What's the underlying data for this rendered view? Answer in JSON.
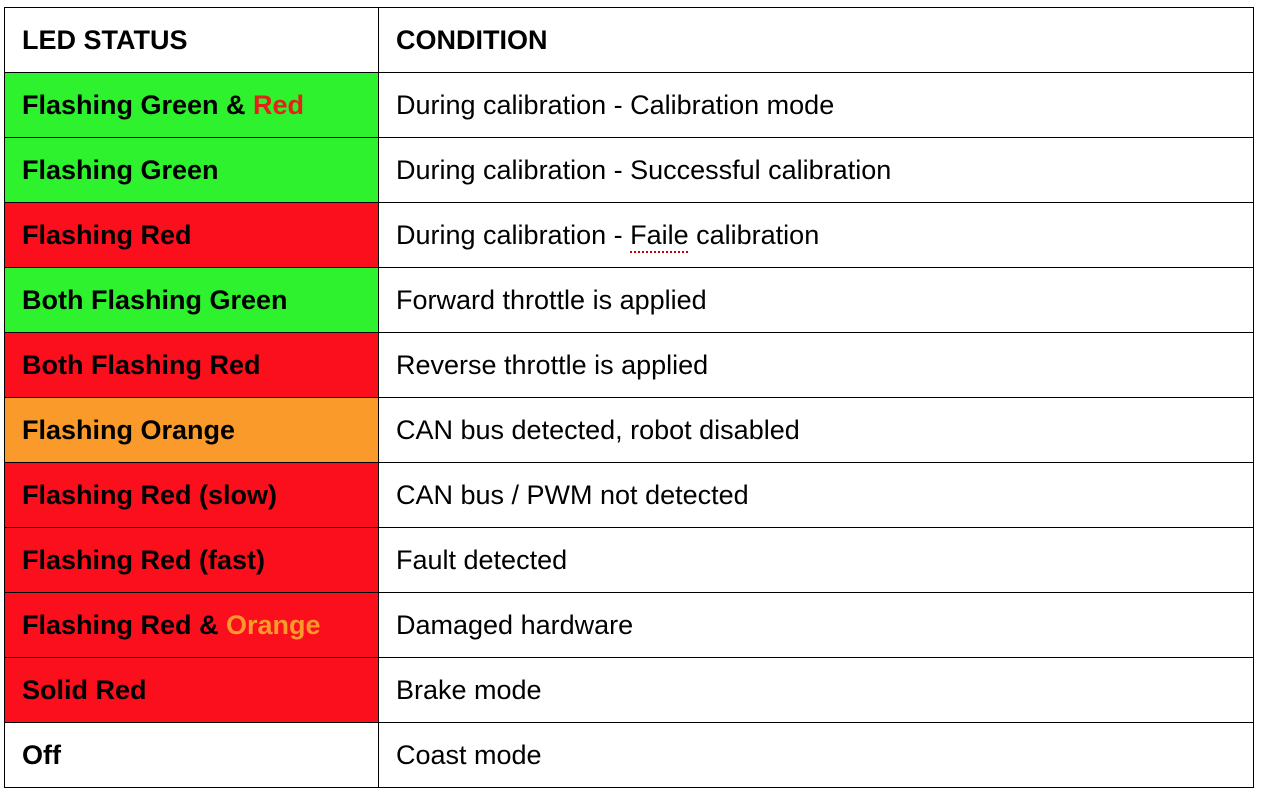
{
  "table": {
    "headers": {
      "status": "LED STATUS",
      "condition": "CONDITION"
    },
    "rows": [
      {
        "status_parts": [
          {
            "text": "Flashing Green & ",
            "color": "#000000"
          },
          {
            "text": "Red",
            "color": "#e8201b"
          }
        ],
        "bg": "#2df22d",
        "condition": "During calibration - Calibration mode"
      },
      {
        "status_parts": [
          {
            "text": "Flashing Green",
            "color": "#000000"
          }
        ],
        "bg": "#2df22d",
        "condition": "During calibration - Successful calibration"
      },
      {
        "status_parts": [
          {
            "text": "Flashing Red",
            "color": "#000000"
          }
        ],
        "bg": "#fb0f1c",
        "condition": "During calibration - Faile calibration",
        "condition_spell_word": "Faile"
      },
      {
        "status_parts": [
          {
            "text": "Both Flashing Green",
            "color": "#000000"
          }
        ],
        "bg": "#2df22d",
        "condition": "Forward throttle is applied"
      },
      {
        "status_parts": [
          {
            "text": "Both Flashing Red",
            "color": "#000000"
          }
        ],
        "bg": "#fb0f1c",
        "condition": "Reverse throttle is applied"
      },
      {
        "status_parts": [
          {
            "text": "Flashing Orange",
            "color": "#000000"
          }
        ],
        "bg": "#f99a2b",
        "condition": "CAN bus detected, robot disabled"
      },
      {
        "status_parts": [
          {
            "text": "Flashing Red (slow)",
            "color": "#000000"
          }
        ],
        "bg": "#fb0f1c",
        "condition": "CAN bus / PWM not detected"
      },
      {
        "status_parts": [
          {
            "text": "Flashing Red (fast)",
            "color": "#000000"
          }
        ],
        "bg": "#fb0f1c",
        "condition": "Fault detected"
      },
      {
        "status_parts": [
          {
            "text": "Flashing Red & ",
            "color": "#000000"
          },
          {
            "text": "Orange",
            "color": "#f99a2b"
          }
        ],
        "bg": "#fb0f1c",
        "condition": "Damaged hardware"
      },
      {
        "status_parts": [
          {
            "text": "Solid Red",
            "color": "#000000"
          }
        ],
        "bg": "#fb0f1c",
        "condition": "Brake mode"
      },
      {
        "status_parts": [
          {
            "text": "Off",
            "color": "#000000"
          }
        ],
        "bg": "#ffffff",
        "condition": "Coast mode"
      }
    ]
  }
}
